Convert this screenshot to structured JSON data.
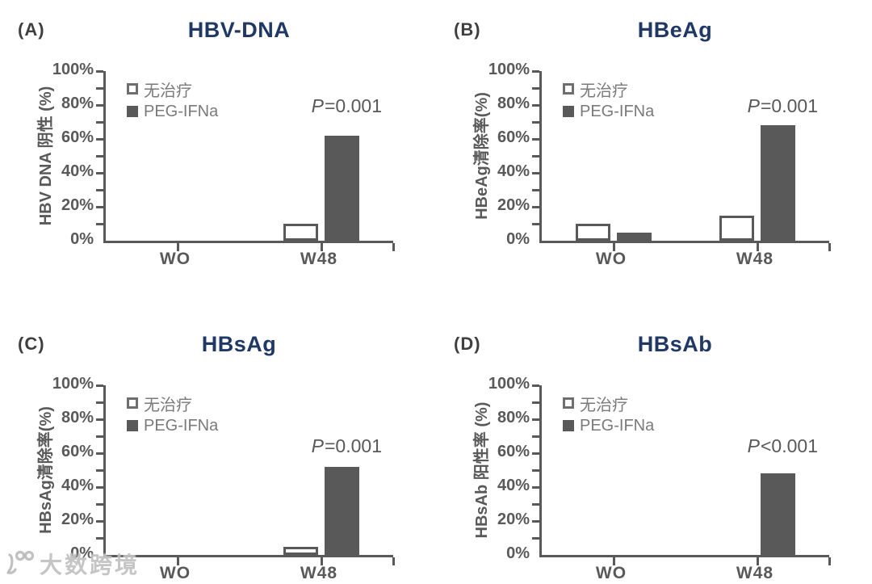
{
  "legend": {
    "no_treatment": "无治疗",
    "peg_ifna": "PEG-IFNa"
  },
  "colors": {
    "title": "#1f3864",
    "bar_fill": "#595959",
    "axis": "#595959",
    "tick_label": "#595959",
    "legend_text": "#7a7a7a",
    "panel_label": "#3f3f3f"
  },
  "watermark": {
    "logo": "100",
    "text": "大数跨境"
  },
  "chart_data": [
    {
      "type": "bar",
      "panel": "(A)",
      "title": "HBV-DNA",
      "ylabel": "HBV DNA 阴性 (%)",
      "xlabel": "",
      "categories": [
        "WO",
        "W48"
      ],
      "series": [
        {
          "name": "无治疗",
          "style": "open",
          "values": [
            0,
            10
          ]
        },
        {
          "name": "PEG-IFNa",
          "style": "filled",
          "values": [
            0,
            62
          ]
        }
      ],
      "p_italic": "P",
      "p_rest": "=0.001",
      "ylim": [
        0,
        100
      ],
      "grid": false,
      "legend_position": "top-left",
      "yticks": [
        {
          "value": 0,
          "label": "0%"
        },
        {
          "value": 20,
          "label": "20%"
        },
        {
          "value": 40,
          "label": "40%"
        },
        {
          "value": 60,
          "label": "60%"
        },
        {
          "value": 80,
          "label": "80%"
        },
        {
          "value": 100,
          "label": "100%"
        }
      ]
    },
    {
      "type": "bar",
      "panel": "(B)",
      "title": "HBeAg",
      "ylabel": "HBeAg清除率(%)",
      "xlabel": "",
      "categories": [
        "WO",
        "W48"
      ],
      "series": [
        {
          "name": "无治疗",
          "style": "open",
          "values": [
            10,
            15
          ]
        },
        {
          "name": "PEG-IFNa",
          "style": "filled",
          "values": [
            5,
            68
          ]
        }
      ],
      "p_italic": "P",
      "p_rest": "=0.001",
      "ylim": [
        0,
        100
      ],
      "grid": false,
      "legend_position": "top-left",
      "yticks": [
        {
          "value": 0,
          "label": "0%"
        },
        {
          "value": 20,
          "label": "20%"
        },
        {
          "value": 40,
          "label": "40%"
        },
        {
          "value": 60,
          "label": "60%"
        },
        {
          "value": 80,
          "label": "80%"
        },
        {
          "value": 100,
          "label": "100%"
        }
      ]
    },
    {
      "type": "bar",
      "panel": "(C)",
      "title": "HBsAg",
      "ylabel": "HBsAg清除率(%)",
      "xlabel": "",
      "categories": [
        "WO",
        "W48"
      ],
      "series": [
        {
          "name": "无治疗",
          "style": "open",
          "values": [
            0,
            5
          ]
        },
        {
          "name": "PEG-IFNa",
          "style": "filled",
          "values": [
            0,
            52
          ]
        }
      ],
      "p_italic": "P",
      "p_rest": "=0.001",
      "ylim": [
        0,
        100
      ],
      "grid": false,
      "legend_position": "top-left",
      "yticks": [
        {
          "value": 0,
          "label": "0%"
        },
        {
          "value": 20,
          "label": "20%"
        },
        {
          "value": 40,
          "label": "40%"
        },
        {
          "value": 60,
          "label": "60%"
        },
        {
          "value": 80,
          "label": "80%"
        },
        {
          "value": 100,
          "label": "100%"
        }
      ]
    },
    {
      "type": "bar",
      "panel": "(D)",
      "title": "HBsAb",
      "ylabel": "HBsAb 阳性率 (%)",
      "xlabel": "",
      "categories": [
        "WO",
        "W48"
      ],
      "series": [
        {
          "name": "无治疗",
          "style": "open",
          "values": [
            0,
            0
          ]
        },
        {
          "name": "PEG-IFNa",
          "style": "filled",
          "values": [
            0,
            48
          ]
        }
      ],
      "p_italic": "P",
      "p_rest": "<0.001",
      "ylim": [
        0,
        100
      ],
      "grid": false,
      "legend_position": "top-left",
      "yticks": [
        {
          "value": 0,
          "label": "0%"
        },
        {
          "value": 20,
          "label": "20%"
        },
        {
          "value": 40,
          "label": "40%"
        },
        {
          "value": 60,
          "label": "60%"
        },
        {
          "value": 80,
          "label": "80%"
        },
        {
          "value": 100,
          "label": "100%"
        }
      ]
    }
  ]
}
